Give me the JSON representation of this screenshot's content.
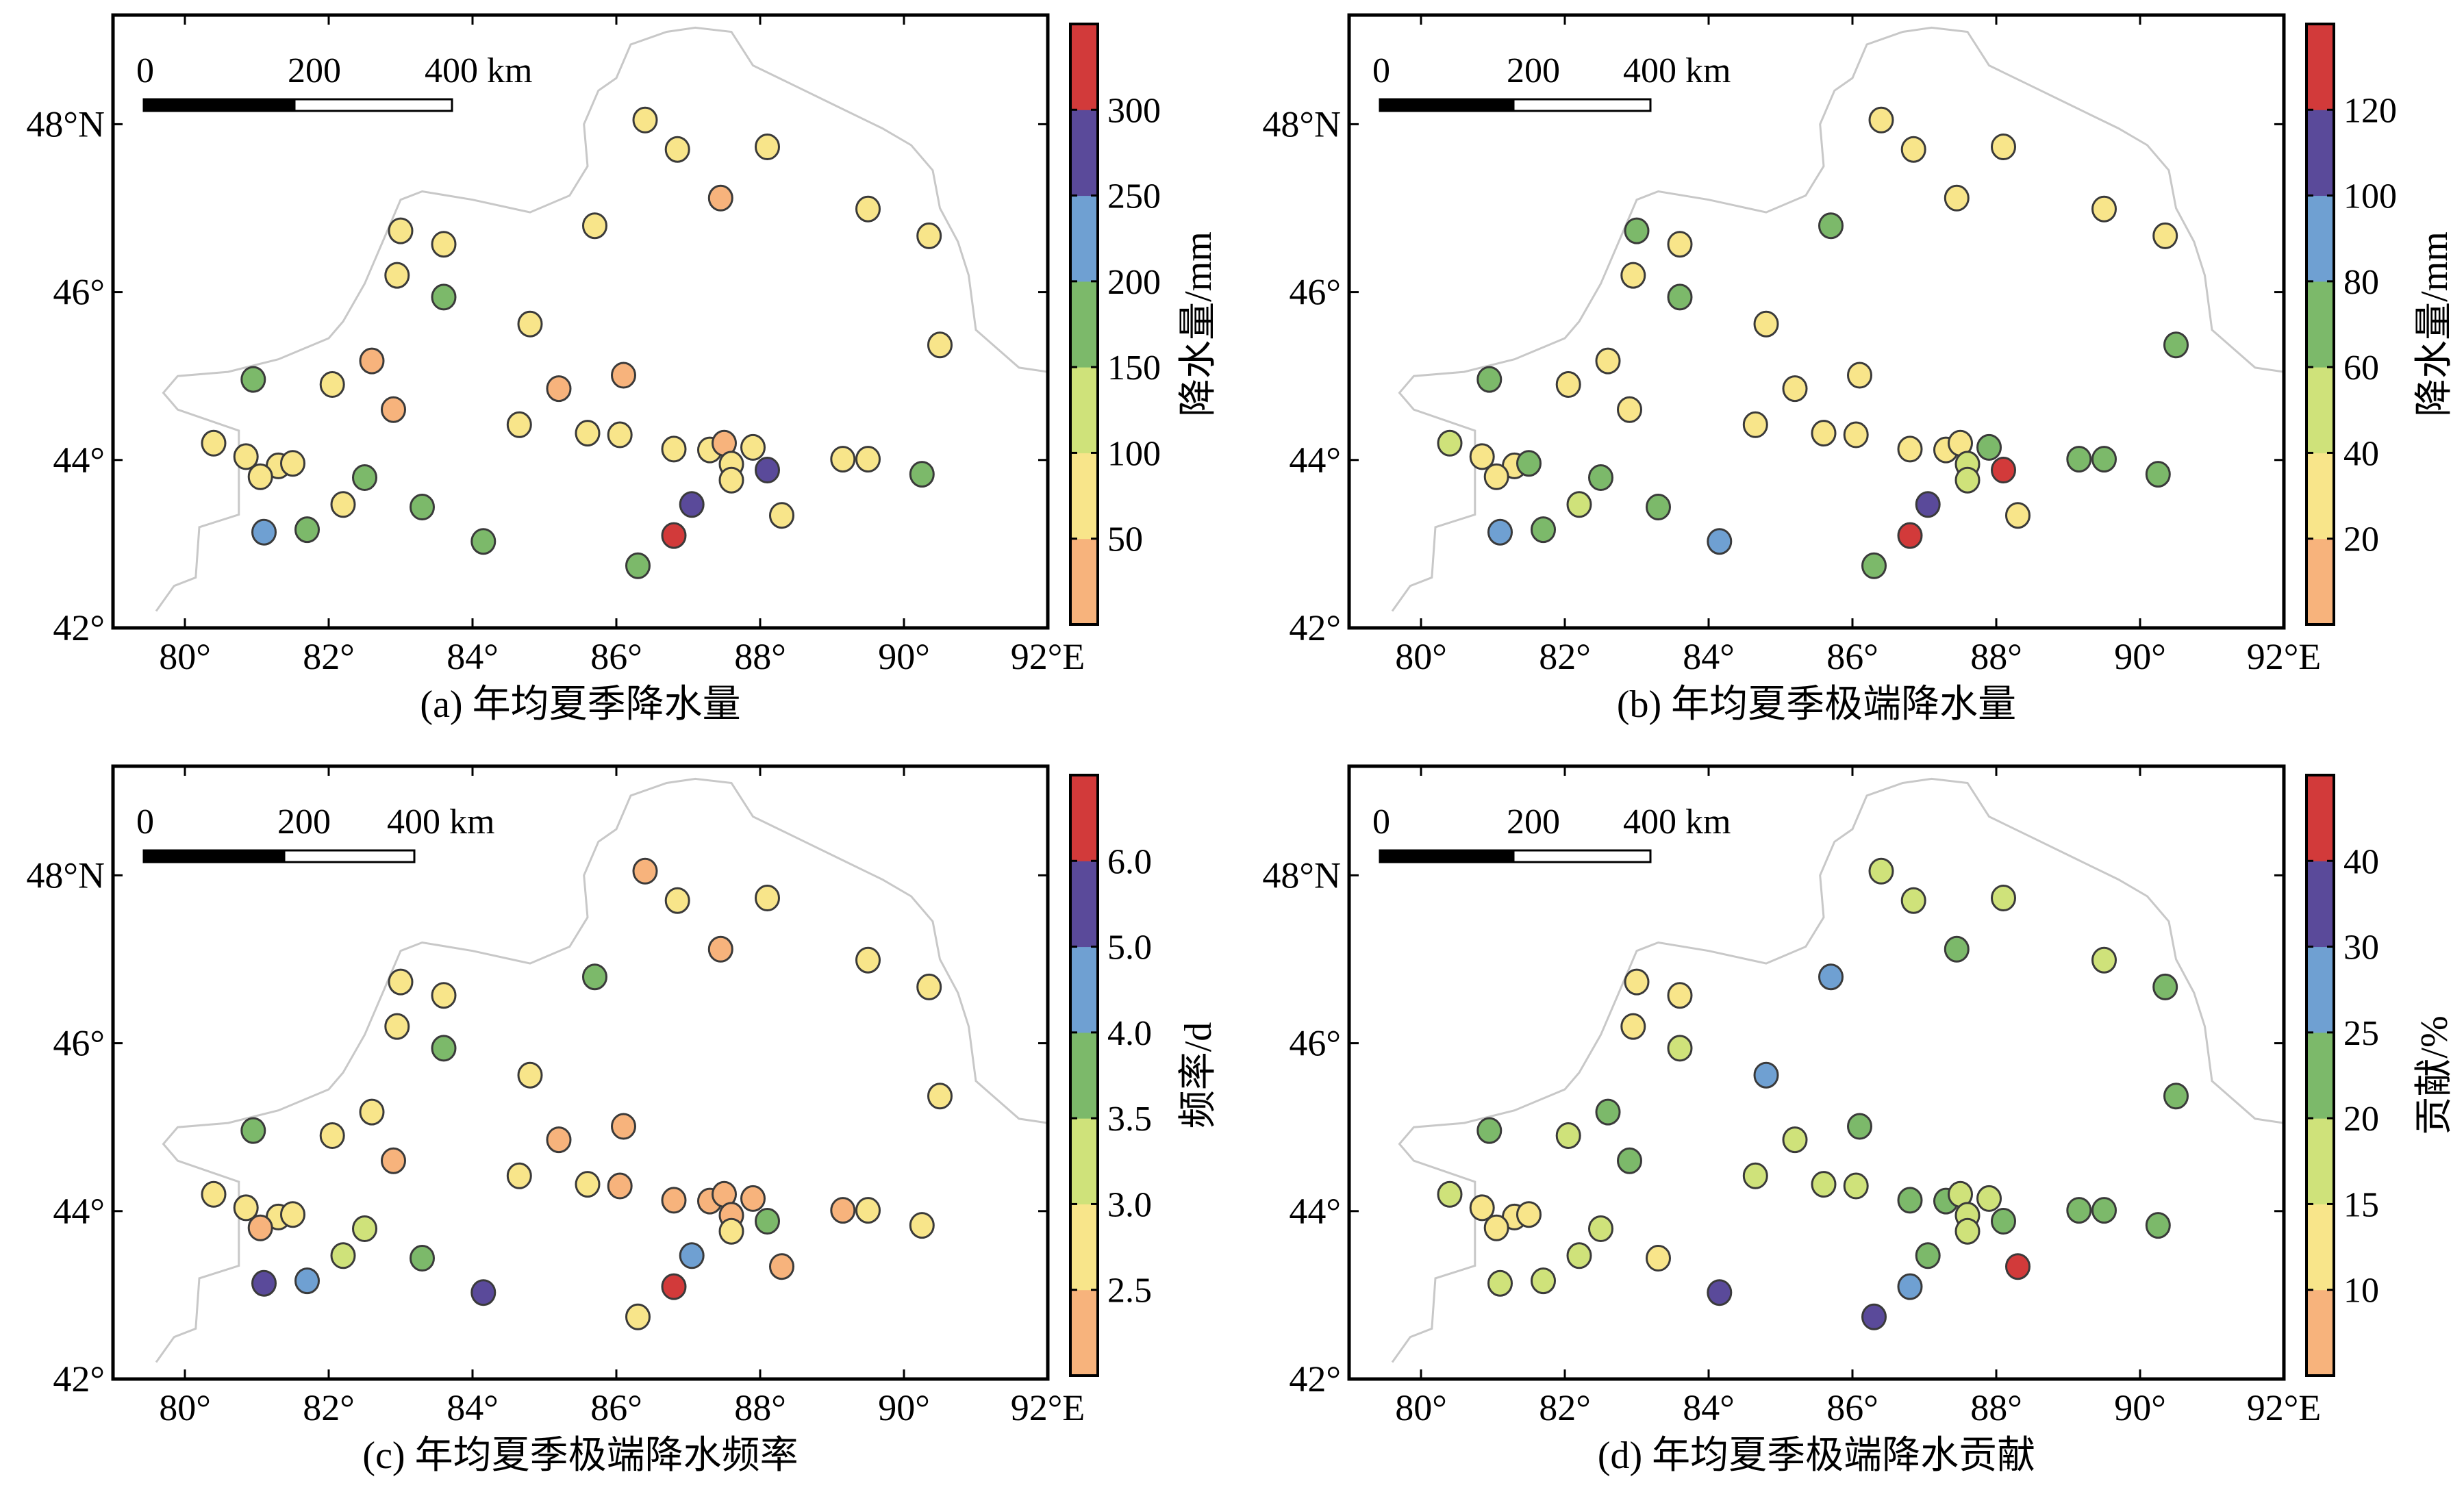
{
  "colors": {
    "boundary": "#c8c8c8",
    "station_outline": "#3a3a3a",
    "bins": [
      "#f7b37c",
      "#f8e58a",
      "#cfe27a",
      "#7cb96a",
      "#6fa0d2",
      "#5a4a9a",
      "#d23a3a"
    ]
  },
  "map": {
    "lon_ticks": [
      80,
      82,
      84,
      86,
      88,
      90,
      92
    ],
    "lon_tick_labels": [
      "80°",
      "82°",
      "84°",
      "86°",
      "88°",
      "90°",
      "92°E"
    ],
    "lat_ticks": [
      42,
      44,
      46,
      48
    ],
    "lat_tick_labels": [
      "42°",
      "44°",
      "46°",
      "48°N"
    ],
    "lon_range": [
      79,
      92
    ],
    "lat_range": [
      42,
      49.3
    ],
    "scalebar_labels": [
      "0",
      "200",
      "400 km"
    ]
  },
  "boundary": [
    [
      79.6,
      42.2
    ],
    [
      79.85,
      42.5
    ],
    [
      80.15,
      42.6
    ],
    [
      80.2,
      43.2
    ],
    [
      80.75,
      43.35
    ],
    [
      80.75,
      44.35
    ],
    [
      79.9,
      44.6
    ],
    [
      79.7,
      44.8
    ],
    [
      79.9,
      45.0
    ],
    [
      80.6,
      45.05
    ],
    [
      81.3,
      45.2
    ],
    [
      82.0,
      45.45
    ],
    [
      82.2,
      45.65
    ],
    [
      82.5,
      46.1
    ],
    [
      82.75,
      46.6
    ],
    [
      83.0,
      47.1
    ],
    [
      83.3,
      47.2
    ],
    [
      84.0,
      47.1
    ],
    [
      84.8,
      46.95
    ],
    [
      85.35,
      47.15
    ],
    [
      85.6,
      47.5
    ],
    [
      85.55,
      48.0
    ],
    [
      85.75,
      48.4
    ],
    [
      86.0,
      48.55
    ],
    [
      86.2,
      48.95
    ],
    [
      86.7,
      49.1
    ],
    [
      87.1,
      49.15
    ],
    [
      87.6,
      49.1
    ],
    [
      87.9,
      48.7
    ],
    [
      88.5,
      48.45
    ],
    [
      89.1,
      48.2
    ],
    [
      89.7,
      47.95
    ],
    [
      90.1,
      47.75
    ],
    [
      90.4,
      47.45
    ],
    [
      90.5,
      47.0
    ],
    [
      90.75,
      46.6
    ],
    [
      90.9,
      46.2
    ],
    [
      91.0,
      45.55
    ],
    [
      91.6,
      45.1
    ],
    [
      92.0,
      45.05
    ]
  ],
  "stations": [
    [
      86.4,
      48.05
    ],
    [
      86.85,
      47.7
    ],
    [
      88.1,
      47.73
    ],
    [
      87.45,
      47.12
    ],
    [
      89.5,
      46.99
    ],
    [
      90.35,
      46.67
    ],
    [
      83.0,
      46.73
    ],
    [
      83.6,
      46.57
    ],
    [
      82.95,
      46.2
    ],
    [
      85.7,
      46.79
    ],
    [
      83.6,
      45.94
    ],
    [
      84.8,
      45.62
    ],
    [
      90.5,
      45.37
    ],
    [
      82.6,
      45.18
    ],
    [
      86.1,
      45.01
    ],
    [
      80.95,
      44.96
    ],
    [
      82.05,
      44.9
    ],
    [
      85.2,
      44.85
    ],
    [
      82.9,
      44.6
    ],
    [
      84.65,
      44.42
    ],
    [
      85.6,
      44.32
    ],
    [
      86.05,
      44.3
    ],
    [
      80.4,
      44.2
    ],
    [
      86.8,
      44.13
    ],
    [
      87.3,
      44.12
    ],
    [
      87.5,
      44.2
    ],
    [
      87.9,
      44.15
    ],
    [
      80.85,
      44.04
    ],
    [
      81.3,
      43.93
    ],
    [
      81.5,
      43.96
    ],
    [
      81.05,
      43.8
    ],
    [
      87.6,
      43.95
    ],
    [
      89.15,
      44.01
    ],
    [
      89.5,
      44.01
    ],
    [
      88.1,
      43.88
    ],
    [
      90.25,
      43.83
    ],
    [
      82.5,
      43.79
    ],
    [
      87.6,
      43.76
    ],
    [
      82.2,
      43.47
    ],
    [
      83.3,
      43.44
    ],
    [
      87.05,
      43.47
    ],
    [
      88.3,
      43.34
    ],
    [
      81.1,
      43.14
    ],
    [
      81.7,
      43.17
    ],
    [
      84.15,
      43.03
    ],
    [
      86.8,
      43.1
    ],
    [
      86.3,
      42.74
    ]
  ],
  "panels": [
    {
      "caption": "(a) 年均夏季降水量",
      "colorbar_label": "降水量/mm",
      "tick_labels": [
        "50",
        "100",
        "150",
        "200",
        "250",
        "300"
      ],
      "bin_index": [
        1,
        1,
        1,
        0,
        1,
        1,
        1,
        1,
        1,
        1,
        3,
        1,
        1,
        0,
        0,
        3,
        1,
        0,
        0,
        1,
        1,
        1,
        1,
        1,
        1,
        0,
        1,
        1,
        1,
        1,
        1,
        1,
        1,
        1,
        5,
        3,
        3,
        1,
        1,
        3,
        5,
        1,
        4,
        3,
        3,
        6,
        3
      ]
    },
    {
      "caption": "(b) 年均夏季极端降水量",
      "colorbar_label": "降水量/mm",
      "tick_labels": [
        "20",
        "40",
        "60",
        "80",
        "100",
        "120"
      ],
      "bin_index": [
        1,
        1,
        1,
        1,
        1,
        1,
        3,
        1,
        1,
        3,
        3,
        1,
        3,
        1,
        1,
        3,
        1,
        1,
        1,
        1,
        1,
        1,
        2,
        1,
        1,
        1,
        3,
        1,
        1,
        3,
        1,
        2,
        3,
        3,
        6,
        3,
        3,
        2,
        2,
        3,
        5,
        1,
        4,
        3,
        4,
        6,
        3
      ]
    },
    {
      "caption": "(c) 年均夏季极端降水频率",
      "colorbar_label": "频率/d",
      "tick_labels": [
        "2.5",
        "3.0",
        "3.5",
        "4.0",
        "5.0",
        "6.0"
      ],
      "bin_index": [
        0,
        1,
        1,
        0,
        1,
        1,
        1,
        1,
        1,
        3,
        3,
        1,
        1,
        1,
        0,
        3,
        1,
        0,
        0,
        1,
        1,
        0,
        1,
        0,
        0,
        0,
        0,
        1,
        1,
        1,
        0,
        0,
        0,
        1,
        3,
        1,
        2,
        1,
        2,
        3,
        4,
        0,
        5,
        4,
        5,
        6,
        1
      ]
    },
    {
      "caption": "(d) 年均夏季极端降水贡献",
      "colorbar_label": "贡献/%",
      "tick_labels": [
        "10",
        "15",
        "20",
        "25",
        "30",
        "40"
      ],
      "bin_index": [
        2,
        2,
        2,
        3,
        2,
        3,
        1,
        1,
        1,
        4,
        2,
        4,
        3,
        3,
        3,
        3,
        2,
        2,
        3,
        2,
        2,
        2,
        2,
        3,
        3,
        2,
        2,
        1,
        1,
        1,
        1,
        2,
        3,
        3,
        3,
        3,
        2,
        2,
        2,
        1,
        3,
        6,
        2,
        2,
        5,
        4,
        5
      ]
    }
  ]
}
